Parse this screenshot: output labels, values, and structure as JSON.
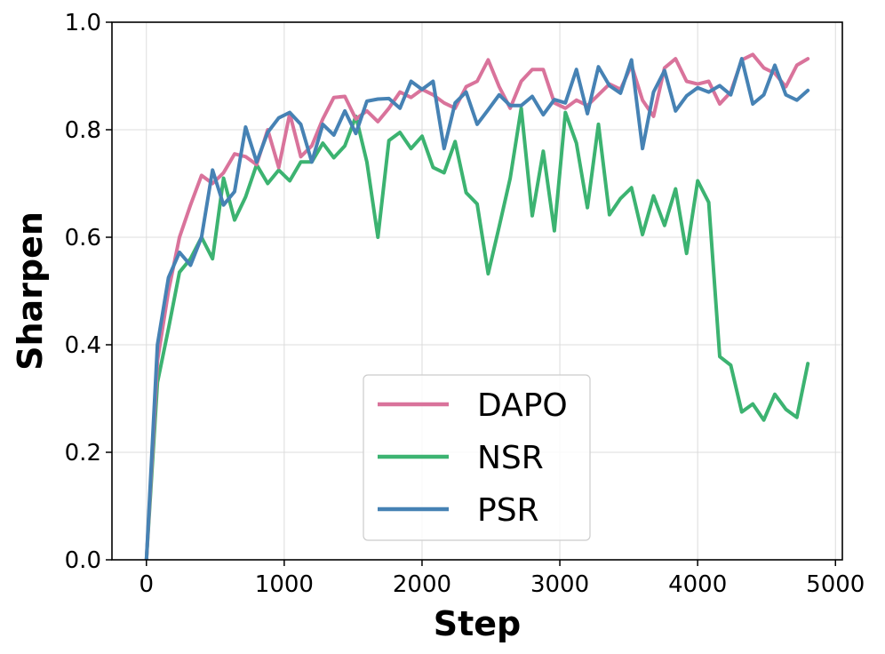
{
  "chart_data": {
    "type": "line",
    "title": "",
    "xlabel": "Step",
    "ylabel": "Sharpen",
    "xlim": [
      -250,
      5050
    ],
    "ylim": [
      0,
      1.0
    ],
    "xticks": [
      0,
      1000,
      2000,
      3000,
      4000,
      5000
    ],
    "yticks": [
      0.0,
      0.2,
      0.4,
      0.6,
      0.8,
      1.0
    ],
    "xtick_labels": [
      "0",
      "1000",
      "2000",
      "3000",
      "4000",
      "5000"
    ],
    "ytick_labels": [
      "0.0",
      "0.2",
      "0.4",
      "0.6",
      "0.8",
      "1.0"
    ],
    "grid": true,
    "legend_position": "bottom-center",
    "series": [
      {
        "name": "DAPO",
        "color": "#d9739b",
        "x": [
          0,
          80,
          160,
          240,
          320,
          400,
          480,
          560,
          640,
          720,
          800,
          880,
          960,
          1040,
          1120,
          1200,
          1280,
          1360,
          1440,
          1520,
          1600,
          1680,
          1760,
          1840,
          1920,
          2000,
          2080,
          2160,
          2240,
          2320,
          2400,
          2480,
          2560,
          2640,
          2720,
          2800,
          2880,
          2960,
          3040,
          3120,
          3200,
          3280,
          3360,
          3440,
          3520,
          3600,
          3680,
          3760,
          3840,
          3920,
          4000,
          4080,
          4160,
          4240,
          4320,
          4400,
          4480,
          4560,
          4640,
          4720,
          4800
        ],
        "y": [
          0.0,
          0.37,
          0.5,
          0.6,
          0.66,
          0.715,
          0.7,
          0.72,
          0.755,
          0.75,
          0.735,
          0.8,
          0.73,
          0.83,
          0.75,
          0.77,
          0.82,
          0.86,
          0.862,
          0.82,
          0.835,
          0.815,
          0.84,
          0.87,
          0.86,
          0.875,
          0.865,
          0.85,
          0.84,
          0.88,
          0.89,
          0.93,
          0.88,
          0.84,
          0.89,
          0.912,
          0.912,
          0.85,
          0.84,
          0.855,
          0.845,
          0.865,
          0.885,
          0.875,
          0.92,
          0.855,
          0.825,
          0.915,
          0.932,
          0.89,
          0.885,
          0.89,
          0.848,
          0.87,
          0.93,
          0.94,
          0.915,
          0.905,
          0.88,
          0.92,
          0.932
        ]
      },
      {
        "name": "NSR",
        "color": "#3cb371",
        "x": [
          0,
          80,
          160,
          240,
          320,
          400,
          480,
          560,
          640,
          720,
          800,
          880,
          960,
          1040,
          1120,
          1200,
          1280,
          1360,
          1440,
          1520,
          1600,
          1680,
          1760,
          1840,
          1920,
          2000,
          2080,
          2160,
          2240,
          2320,
          2400,
          2480,
          2560,
          2640,
          2720,
          2800,
          2880,
          2960,
          3040,
          3120,
          3200,
          3280,
          3360,
          3440,
          3520,
          3600,
          3680,
          3760,
          3840,
          3920,
          4000,
          4080,
          4160,
          4240,
          4320,
          4400,
          4480,
          4560,
          4640,
          4720,
          4800
        ],
        "y": [
          0.0,
          0.33,
          0.43,
          0.535,
          0.56,
          0.6,
          0.56,
          0.71,
          0.632,
          0.675,
          0.735,
          0.7,
          0.725,
          0.705,
          0.74,
          0.74,
          0.775,
          0.748,
          0.77,
          0.825,
          0.74,
          0.6,
          0.78,
          0.795,
          0.765,
          0.788,
          0.73,
          0.72,
          0.778,
          0.683,
          0.662,
          0.532,
          0.62,
          0.71,
          0.84,
          0.64,
          0.76,
          0.612,
          0.832,
          0.775,
          0.655,
          0.81,
          0.642,
          0.672,
          0.692,
          0.605,
          0.677,
          0.622,
          0.69,
          0.57,
          0.705,
          0.665,
          0.378,
          0.362,
          0.275,
          0.29,
          0.26,
          0.308,
          0.28,
          0.265,
          0.365
        ]
      },
      {
        "name": "PSR",
        "color": "#4682b4",
        "x": [
          0,
          80,
          160,
          240,
          320,
          400,
          480,
          560,
          640,
          720,
          800,
          880,
          960,
          1040,
          1120,
          1200,
          1280,
          1360,
          1440,
          1520,
          1600,
          1680,
          1760,
          1840,
          1920,
          2000,
          2080,
          2160,
          2240,
          2320,
          2400,
          2480,
          2560,
          2640,
          2720,
          2800,
          2880,
          2960,
          3040,
          3120,
          3200,
          3280,
          3360,
          3440,
          3520,
          3600,
          3680,
          3760,
          3840,
          3920,
          4000,
          4080,
          4160,
          4240,
          4320,
          4400,
          4480,
          4560,
          4640,
          4720,
          4800
        ],
        "y": [
          0.0,
          0.4,
          0.525,
          0.572,
          0.548,
          0.6,
          0.725,
          0.66,
          0.685,
          0.805,
          0.74,
          0.795,
          0.822,
          0.832,
          0.81,
          0.74,
          0.81,
          0.79,
          0.835,
          0.793,
          0.853,
          0.857,
          0.858,
          0.84,
          0.89,
          0.875,
          0.89,
          0.765,
          0.85,
          0.87,
          0.81,
          0.837,
          0.865,
          0.845,
          0.845,
          0.862,
          0.828,
          0.856,
          0.85,
          0.912,
          0.83,
          0.917,
          0.882,
          0.868,
          0.93,
          0.765,
          0.87,
          0.91,
          0.835,
          0.863,
          0.878,
          0.87,
          0.882,
          0.865,
          0.932,
          0.848,
          0.865,
          0.92,
          0.865,
          0.855,
          0.873
        ]
      }
    ]
  }
}
